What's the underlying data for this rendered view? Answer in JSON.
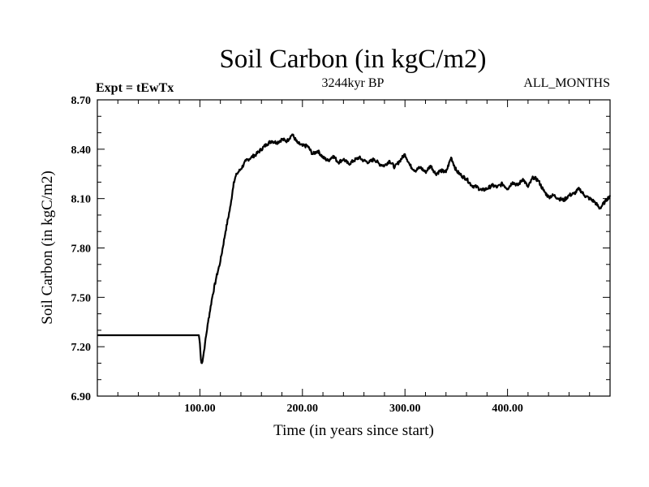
{
  "chart_data": {
    "type": "line",
    "title": "Soil Carbon (in kgC/m2)",
    "subtitle": "3244kyr BP",
    "left_note": "Expt = tEwTx",
    "right_note": "ALL_MONTHS",
    "xlabel": "Time (in years since start)",
    "ylabel": "Soil Carbon (in kgC/m2)",
    "xlim": [
      0,
      500
    ],
    "ylim": [
      6.9,
      8.7
    ],
    "x_ticks": [
      100,
      200,
      300,
      400
    ],
    "x_tick_labels": [
      "100.00",
      "200.00",
      "300.00",
      "400.00"
    ],
    "y_ticks": [
      6.9,
      7.2,
      7.5,
      7.8,
      8.1,
      8.4,
      8.7
    ],
    "y_tick_labels": [
      "6.90",
      "7.20",
      "7.50",
      "7.80",
      "8.10",
      "8.40",
      "8.70"
    ],
    "series": [
      {
        "name": "Soil Carbon",
        "color": "#000000",
        "x": [
          0,
          99,
          100,
          101,
          102,
          103,
          105,
          108,
          112,
          116,
          120,
          125,
          130,
          133,
          136,
          140,
          145,
          150,
          155,
          160,
          165,
          170,
          175,
          180,
          185,
          190,
          195,
          200,
          205,
          210,
          215,
          220,
          225,
          230,
          235,
          240,
          245,
          250,
          255,
          260,
          265,
          270,
          275,
          280,
          285,
          290,
          295,
          300,
          305,
          310,
          315,
          320,
          325,
          330,
          335,
          340,
          345,
          350,
          355,
          360,
          365,
          370,
          375,
          380,
          385,
          390,
          395,
          400,
          405,
          410,
          415,
          420,
          425,
          430,
          435,
          440,
          445,
          450,
          455,
          460,
          465,
          470,
          475,
          480,
          485,
          490,
          495,
          500
        ],
        "y": [
          7.27,
          7.27,
          7.22,
          7.12,
          7.1,
          7.13,
          7.22,
          7.35,
          7.5,
          7.62,
          7.72,
          7.9,
          8.06,
          8.2,
          8.25,
          8.28,
          8.33,
          8.35,
          8.37,
          8.4,
          8.43,
          8.45,
          8.44,
          8.46,
          8.45,
          8.49,
          8.44,
          8.42,
          8.42,
          8.37,
          8.39,
          8.35,
          8.33,
          8.36,
          8.32,
          8.34,
          8.31,
          8.33,
          8.35,
          8.33,
          8.32,
          8.34,
          8.31,
          8.3,
          8.33,
          8.29,
          8.33,
          8.37,
          8.3,
          8.27,
          8.29,
          8.26,
          8.3,
          8.25,
          8.27,
          8.26,
          8.35,
          8.27,
          8.24,
          8.22,
          8.18,
          8.17,
          8.15,
          8.16,
          8.18,
          8.17,
          8.19,
          8.16,
          8.2,
          8.18,
          8.22,
          8.17,
          8.23,
          8.21,
          8.15,
          8.11,
          8.12,
          8.1,
          8.09,
          8.12,
          8.13,
          8.16,
          8.12,
          8.1,
          8.08,
          8.04,
          8.08,
          8.12
        ]
      }
    ]
  }
}
